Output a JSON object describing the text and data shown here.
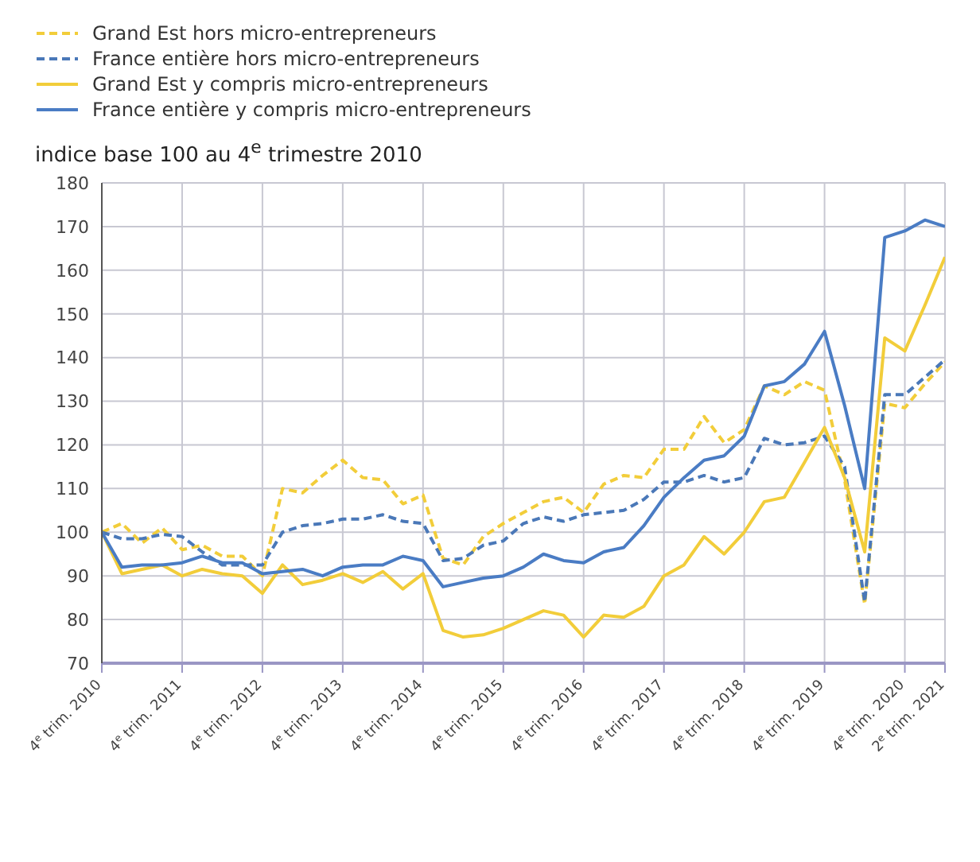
{
  "chart_data": {
    "type": "line",
    "ylabel": "indice base 100 au 4$^{e}$ trimestre 2010",
    "categories": [
      "4$^{e}$ trim. 2010",
      null,
      null,
      null,
      "4$^{e}$ trim. 2011",
      null,
      null,
      null,
      "4$^{e}$ trim. 2012",
      null,
      null,
      null,
      "4$^{e}$ trim. 2013",
      null,
      null,
      null,
      "4$^{e}$ trim. 2014",
      null,
      null,
      null,
      "4$^{e}$ trim. 2015",
      null,
      null,
      null,
      "4$^{e}$ trim. 2016",
      null,
      null,
      null,
      "4$^{e}$ trim. 2017",
      null,
      null,
      null,
      "4$^{e}$ trim. 2018",
      null,
      null,
      null,
      "4$^{e}$ trim. 2019",
      null,
      null,
      null,
      "4$^{e}$ trim. 2020",
      null,
      "2$^{e}$ trim. 2021"
    ],
    "series": [
      {
        "name": "Grand Est hors micro-entrepreneurs",
        "color": "#f2cd3a",
        "line_style": "dashed",
        "values": [
          100,
          102,
          97.5,
          101,
          96,
          97,
          94.5,
          94.5,
          90,
          110,
          109,
          113,
          116.5,
          112.5,
          112,
          106.5,
          108.5,
          94,
          92.5,
          99,
          102,
          104.5,
          107,
          108,
          104.5,
          111,
          113,
          112.5,
          119,
          119,
          126.5,
          120.5,
          123.5,
          133.5,
          131.5,
          134.5,
          132.5,
          112,
          83.5,
          129.5,
          128.5,
          134,
          139
        ]
      },
      {
        "name": "France entière hors micro-entrepreneurs",
        "color": "#4a78b8",
        "line_style": "dashed",
        "values": [
          100,
          98.5,
          98.5,
          99.5,
          99,
          95.5,
          92.5,
          92.5,
          92.5,
          100,
          101.5,
          102,
          103,
          103,
          104,
          102.5,
          102,
          93.5,
          94,
          97,
          98,
          102,
          103.5,
          102.5,
          104,
          104.5,
          105,
          107.5,
          111.5,
          111.5,
          113,
          111.5,
          112.5,
          121.5,
          120,
          120.5,
          122,
          115,
          84,
          131.5,
          131.5,
          135.5,
          139.5
        ]
      },
      {
        "name": "Grand Est y compris micro-entrepreneurs",
        "color": "#f2cd3a",
        "line_style": "solid",
        "values": [
          100,
          90.5,
          91.5,
          92.5,
          90,
          91.5,
          90.5,
          90,
          86,
          92.5,
          88,
          89,
          90.5,
          88.5,
          91,
          87,
          90.5,
          77.5,
          76,
          76.5,
          78,
          80,
          82,
          81,
          76,
          81,
          80.5,
          83,
          90,
          92.5,
          99,
          95,
          100,
          107,
          108,
          116,
          124,
          112.5,
          95.5,
          144.5,
          141.5,
          152,
          163
        ]
      },
      {
        "name": "France entière y compris micro-entrepreneurs",
        "color": "#4a7cc4",
        "line_style": "solid",
        "values": [
          100,
          92,
          92.5,
          92.5,
          93,
          94.5,
          93,
          93,
          90.5,
          91,
          91.5,
          90,
          92,
          92.5,
          92.5,
          94.5,
          93.5,
          87.5,
          88.5,
          89.5,
          90,
          92,
          95,
          93.5,
          93,
          95.5,
          96.5,
          101.5,
          108,
          112.5,
          116.5,
          117.5,
          122,
          133.5,
          134.5,
          138.5,
          146,
          129,
          110,
          167.5,
          169,
          171.5,
          170
        ]
      }
    ],
    "ylim": [
      70,
      180
    ],
    "yticks": [
      70,
      80,
      90,
      100,
      110,
      120,
      130,
      140,
      150,
      160,
      170,
      180
    ],
    "grid": true,
    "legend": "top left",
    "marker": "none"
  }
}
